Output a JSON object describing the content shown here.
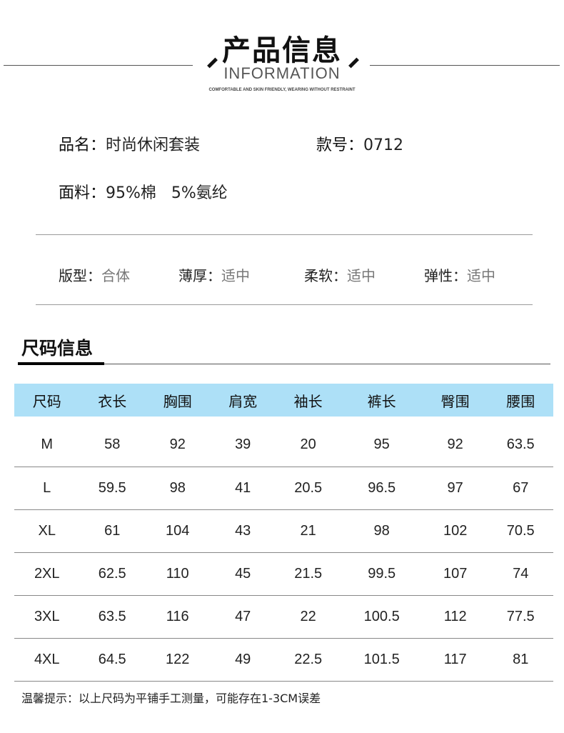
{
  "header": {
    "title": "产品信息",
    "subtitle": "INFORMATION",
    "tagline": "COMFORTABLE AND SKIN FRIENDLY, WEARING WITHOUT RESTRAINT"
  },
  "product": {
    "name_label": "品名：",
    "name": "时尚休闲套装",
    "model_label": "款号：",
    "model": "0712",
    "fabric_label": "面料：",
    "fabric": "95%棉   5%氨纶"
  },
  "attributes": [
    {
      "label": "版型：",
      "value": "合体"
    },
    {
      "label": "薄厚：",
      "value": "适中"
    },
    {
      "label": "柔软：",
      "value": "适中"
    },
    {
      "label": "弹性：",
      "value": "适中"
    }
  ],
  "size_section": {
    "title": "尺码信息"
  },
  "size_table": {
    "headers": [
      "尺码",
      "衣长",
      "胸围",
      "肩宽",
      "袖长",
      "裤长",
      "臀围",
      "腰围"
    ],
    "rows": [
      [
        "M",
        "58",
        "92",
        "39",
        "20",
        "95",
        "92",
        "63.5"
      ],
      [
        "L",
        "59.5",
        "98",
        "41",
        "20.5",
        "96.5",
        "97",
        "67"
      ],
      [
        "XL",
        "61",
        "104",
        "43",
        "21",
        "98",
        "102",
        "70.5"
      ],
      [
        "2XL",
        "62.5",
        "110",
        "45",
        "21.5",
        "99.5",
        "107",
        "74"
      ],
      [
        "3XL",
        "63.5",
        "116",
        "47",
        "22",
        "100.5",
        "112",
        "77.5"
      ],
      [
        "4XL",
        "64.5",
        "122",
        "49",
        "22.5",
        "101.5",
        "117",
        "81"
      ]
    ],
    "header_color": "#ade0f7"
  },
  "note": "温馨提示：以上尺码为平铺手工测量，可能存在1-3CM误差"
}
